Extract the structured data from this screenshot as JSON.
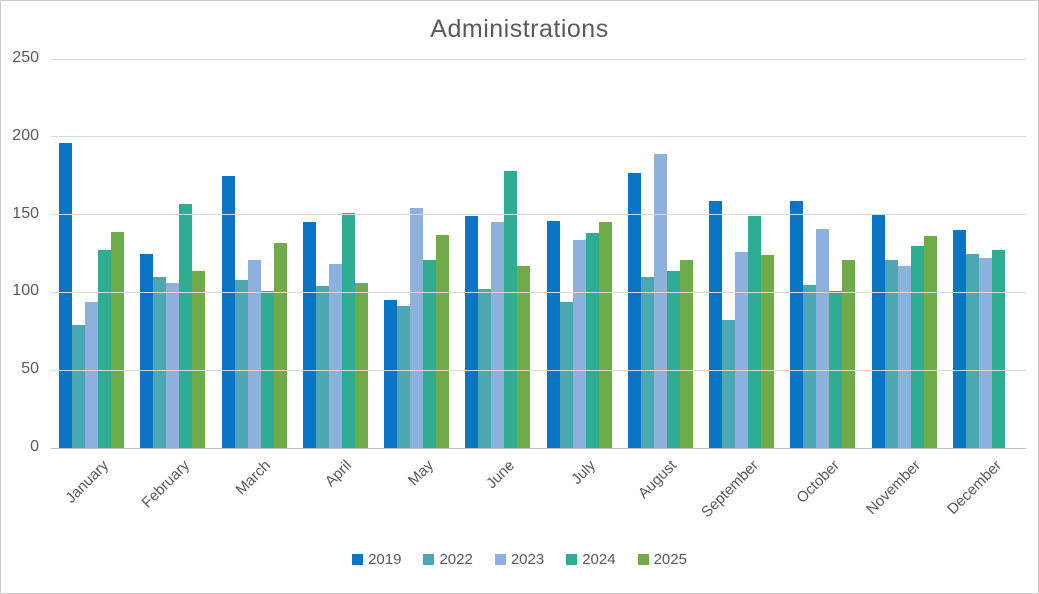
{
  "chart_data": {
    "type": "bar",
    "title": "Administrations",
    "categories": [
      "January",
      "February",
      "March",
      "April",
      "May",
      "June",
      "July",
      "August",
      "September",
      "October",
      "November",
      "December"
    ],
    "series": [
      {
        "name": "2019",
        "color": "#0a75c4",
        "values": [
          196,
          125,
          175,
          145,
          95,
          149,
          146,
          177,
          159,
          159,
          150,
          140
        ]
      },
      {
        "name": "2022",
        "color": "#4da7b2",
        "values": [
          79,
          110,
          108,
          104,
          91,
          102,
          94,
          110,
          82,
          105,
          121,
          125
        ]
      },
      {
        "name": "2023",
        "color": "#8db1dc",
        "values": [
          94,
          106,
          121,
          118,
          154,
          145,
          134,
          189,
          126,
          141,
          117,
          122
        ]
      },
      {
        "name": "2024",
        "color": "#2ead92",
        "values": [
          127,
          157,
          101,
          151,
          121,
          178,
          138,
          114,
          149,
          101,
          130,
          127
        ]
      },
      {
        "name": "2025",
        "color": "#70ab4a",
        "values": [
          139,
          114,
          132,
          106,
          137,
          117,
          145,
          121,
          124,
          121,
          136,
          null
        ]
      }
    ],
    "xlabel": "",
    "ylabel": "",
    "ylim": [
      0,
      250
    ],
    "ytick_step": 50,
    "yticks": [
      0,
      50,
      100,
      150,
      200,
      250
    ],
    "grid": true,
    "legend_position": "bottom",
    "colors": {
      "gridline": "#d9d9d9",
      "axis_line": "#c2c2c2",
      "text": "#595959",
      "title": "#5a5a5a",
      "background": "#ffffff"
    }
  }
}
